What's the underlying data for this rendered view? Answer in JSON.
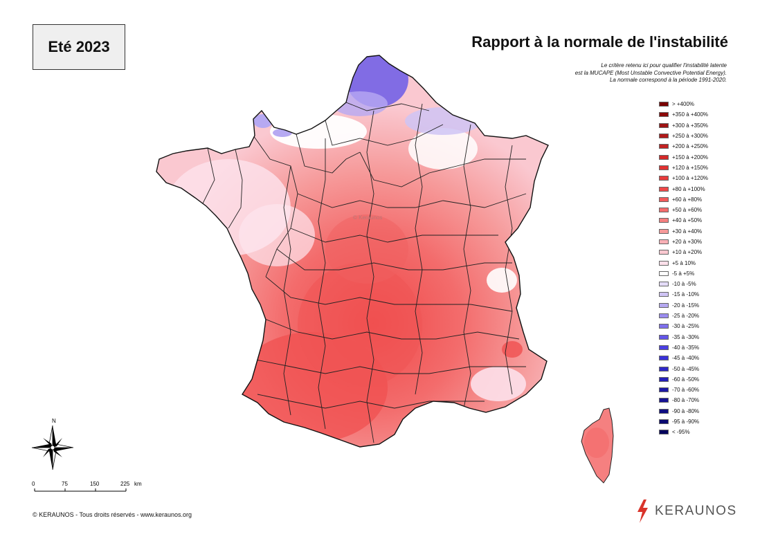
{
  "season_label": "Eté 2023",
  "title": "Rapport à la normale de l'instabilité",
  "notes": [
    "Le critère retenu ici pour qualifier l'instabilité latente",
    "est la MUCAPE (Most Unstable Convective Potential Energy).",
    "La normale correspond à la période 1991-2020."
  ],
  "legend": [
    {
      "label": "> +400%",
      "color": "#7a0000"
    },
    {
      "label": "+350 à +400%",
      "color": "#8c0a0a"
    },
    {
      "label": "+300 à +350%",
      "color": "#9e1414"
    },
    {
      "label": "+250 à +300%",
      "color": "#b01a1a"
    },
    {
      "label": "+200 à +250%",
      "color": "#c22222"
    },
    {
      "label": "+150 à +200%",
      "color": "#d42a2a"
    },
    {
      "label": "+120 à +150%",
      "color": "#e03232"
    },
    {
      "label": "+100 à +120%",
      "color": "#e83c3c"
    },
    {
      "label": "+80 à +100%",
      "color": "#ef4848"
    },
    {
      "label": "+60 à +80%",
      "color": "#f25a5a"
    },
    {
      "label": "+50 à +60%",
      "color": "#f36c6c"
    },
    {
      "label": "+40 à +50%",
      "color": "#f58080"
    },
    {
      "label": "+30 à +40%",
      "color": "#f69a9a"
    },
    {
      "label": "+20 à +30%",
      "color": "#f8b0b6"
    },
    {
      "label": "+10 à +20%",
      "color": "#fac8d0"
    },
    {
      "label": "+5 à 10%",
      "color": "#fde0ea"
    },
    {
      "label": "-5 à +5%",
      "color": "#ffffff"
    },
    {
      "label": "-10 à -5%",
      "color": "#e4dcf8"
    },
    {
      "label": "-15 à -10%",
      "color": "#cfc4f5"
    },
    {
      "label": "-20 à -15%",
      "color": "#b6a9f2"
    },
    {
      "label": "-25 à -20%",
      "color": "#9a8cef"
    },
    {
      "label": "-30 à -25%",
      "color": "#7e6fec"
    },
    {
      "label": "-35 à -30%",
      "color": "#6355e8"
    },
    {
      "label": "-40 à -35%",
      "color": "#4b3fe2"
    },
    {
      "label": "-45 à -40%",
      "color": "#3a31d8"
    },
    {
      "label": "-50 à -45%",
      "color": "#2f28c8"
    },
    {
      "label": "-60 à -50%",
      "color": "#2620b8"
    },
    {
      "label": "-70 à -60%",
      "color": "#1e19a6"
    },
    {
      "label": "-80 à -70%",
      "color": "#171394"
    },
    {
      "label": "-90 à -80%",
      "color": "#100e82"
    },
    {
      "label": "-95 à -90%",
      "color": "#0a0970"
    },
    {
      "label": "< -95%",
      "color": "#05045c"
    }
  ],
  "compass_label": "N",
  "scale": {
    "ticks": [
      "0",
      "75",
      "150",
      "225"
    ],
    "unit": "km"
  },
  "copyright": "© KERAUNOS - Tous droits réservés - www.keraunos.org",
  "watermark": "© Keraunos",
  "brand": "KERAUNOS"
}
